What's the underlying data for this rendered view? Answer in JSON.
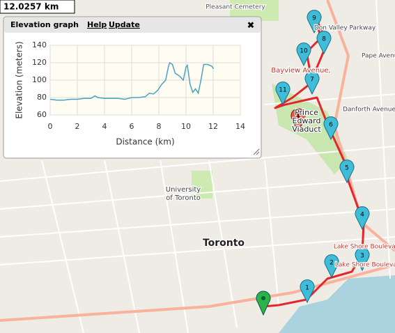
{
  "distance": "12.0257 km",
  "panel": {
    "title": "Elevation graph",
    "help": "Help",
    "update": "Update",
    "close": "✖"
  },
  "chart_data": {
    "type": "line",
    "xlabel": "Distance (km)",
    "ylabel": "Elevation (meters)",
    "color": "#4aa3c0",
    "x": [
      0,
      0.5,
      1,
      1.5,
      2,
      2.5,
      3,
      3.3,
      3.5,
      4,
      4.5,
      5,
      5.5,
      6,
      6.5,
      7,
      7.3,
      7.6,
      7.9,
      8.2,
      8.5,
      8.7,
      8.8,
      9,
      9.2,
      9.5,
      9.8,
      10,
      10.1,
      10.3,
      10.5,
      10.7,
      10.9,
      11.1,
      11.3,
      11.6,
      11.9,
      12.03
    ],
    "values": [
      78,
      77,
      77,
      78,
      78,
      79,
      79,
      82,
      80,
      79,
      79,
      79,
      78,
      80,
      80,
      81,
      85,
      84,
      88,
      95,
      100,
      115,
      120,
      118,
      108,
      105,
      100,
      115,
      117,
      95,
      86,
      90,
      85,
      100,
      118,
      118,
      116,
      113
    ],
    "xlim": [
      0,
      14
    ],
    "xticks": [
      0,
      2,
      4,
      6,
      8,
      10,
      12,
      14
    ],
    "ylim": [
      60,
      140
    ],
    "yticks": [
      60,
      80,
      100,
      120,
      140
    ],
    "grid": true
  },
  "markers": [
    "1",
    "2",
    "3",
    "4",
    "5",
    "6",
    "7",
    "8",
    "9",
    "10",
    "11"
  ],
  "map_labels": [
    "Toronto",
    "University",
    "of Toronto",
    "Prince",
    "Edward",
    "Viaduct",
    "Bayview Avenue,",
    "Danforth Avenue",
    "Lake Shore Boulevard",
    "Lake Shore Boulevard",
    "Pleasant Cemetery",
    "Pape Avenue",
    "Don Valley Parkway"
  ]
}
